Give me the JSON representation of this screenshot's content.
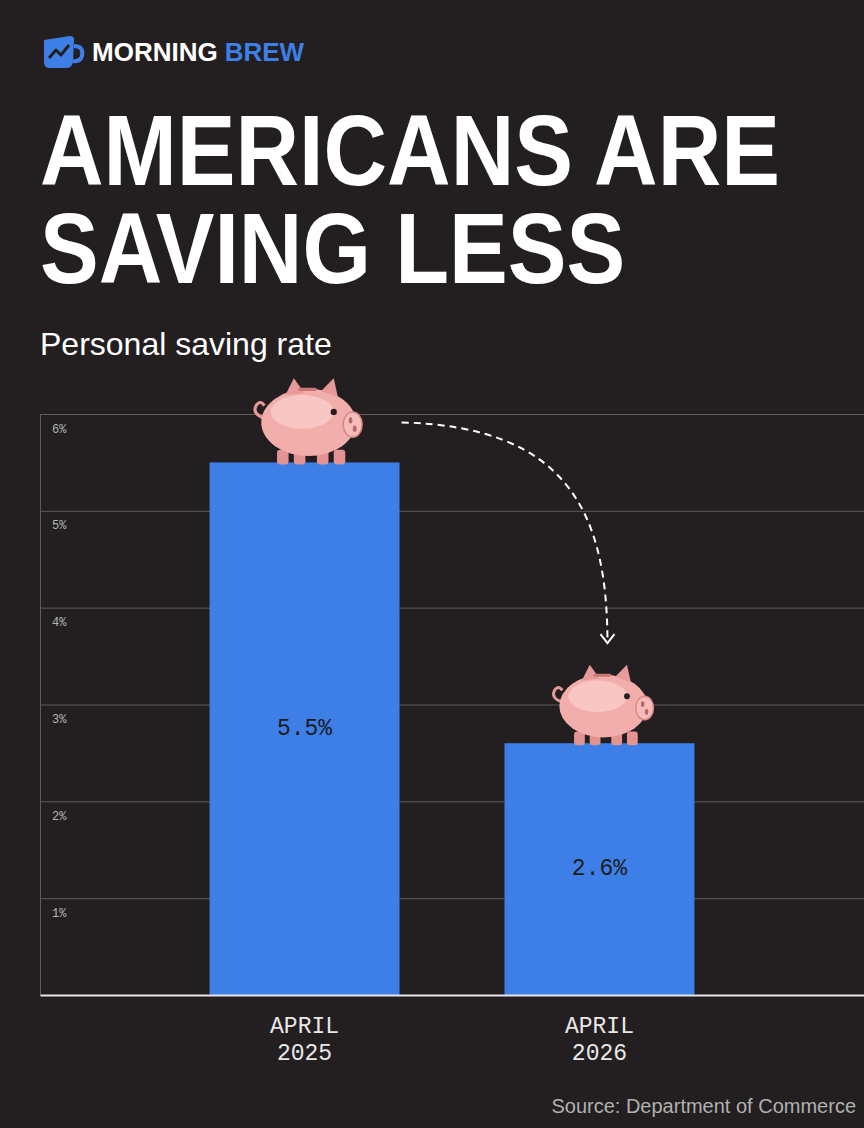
{
  "chart_data": {
    "type": "bar",
    "brand": "MORNING BREW",
    "title": "AMERICANS ARE SAVING LESS",
    "subtitle": "Personal saving rate",
    "source": "Source: Department of Commerce",
    "categories": [
      "APRIL 2025",
      "APRIL 2026"
    ],
    "values": [
      5.5,
      2.6
    ],
    "value_labels": [
      "5.5%",
      "2.6%"
    ],
    "data_labels": true,
    "color": "#3d7fe6",
    "ylim": [
      0,
      6
    ],
    "yticks": [
      {
        "value": 1,
        "label": "1%"
      },
      {
        "value": 2,
        "label": "2%"
      },
      {
        "value": 3,
        "label": "3%"
      },
      {
        "value": 4,
        "label": "4%"
      },
      {
        "value": 5,
        "label": "5%"
      },
      {
        "value": 6,
        "label": "6%"
      }
    ],
    "grid": true
  }
}
